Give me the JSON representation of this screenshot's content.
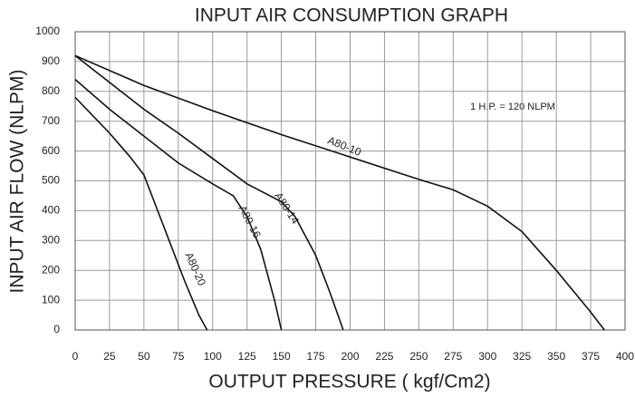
{
  "chart_data": {
    "type": "line",
    "title": "INPUT AIR CONSUMPTION GRAPH",
    "x_label": "OUTPUT PRESSURE ( kgf/Cm2)",
    "y_label": "INPUT AIR FLOW (NLPM)",
    "annotation": "1 H.P. = 120 NLPM",
    "xlim": [
      0,
      400
    ],
    "ylim": [
      0,
      1000
    ],
    "xticks": [
      0,
      25,
      50,
      75,
      100,
      125,
      150,
      175,
      200,
      225,
      250,
      275,
      300,
      325,
      350,
      375,
      400
    ],
    "yticks": [
      0,
      100,
      200,
      300,
      400,
      500,
      600,
      700,
      800,
      900,
      1000
    ],
    "grid": true,
    "series": [
      {
        "name": "A80-10",
        "color": "#111111",
        "x": [
          0,
          50,
          100,
          150,
          200,
          250,
          275,
          300,
          325,
          350,
          375,
          385
        ],
        "values": [
          920,
          820,
          735,
          655,
          580,
          505,
          470,
          415,
          330,
          200,
          60,
          0
        ]
      },
      {
        "name": "A80-14",
        "color": "#111111",
        "x": [
          0,
          25,
          50,
          75,
          100,
          125,
          150,
          160,
          175,
          185,
          195
        ],
        "values": [
          920,
          830,
          740,
          660,
          575,
          490,
          430,
          380,
          250,
          130,
          0
        ]
      },
      {
        "name": "A80-16",
        "color": "#111111",
        "x": [
          0,
          25,
          50,
          75,
          100,
          115,
          125,
          135,
          145,
          150
        ],
        "values": [
          840,
          740,
          650,
          560,
          490,
          450,
          380,
          270,
          100,
          0
        ]
      },
      {
        "name": "A80-20",
        "color": "#111111",
        "x": [
          0,
          25,
          40,
          50,
          60,
          70,
          80,
          90,
          96
        ],
        "values": [
          780,
          660,
          580,
          520,
          400,
          280,
          160,
          50,
          0
        ]
      }
    ]
  }
}
